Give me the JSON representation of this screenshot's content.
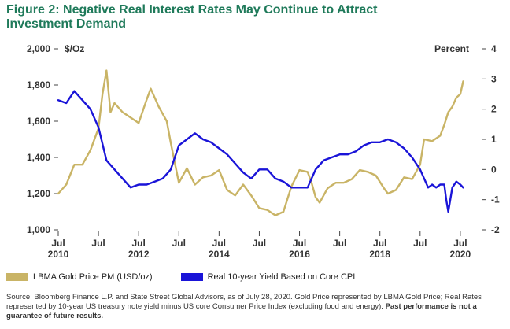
{
  "title_line1": "Figure 2: Negative Real Interest Rates May Continue to Attract",
  "title_line2": "Investment Demand",
  "chart_data": {
    "type": "line",
    "title": "Figure 2: Negative Real Interest Rates May Continue to Attract Investment Demand",
    "left_unit": "$/Oz",
    "right_unit": "Percent",
    "left_ticks": [
      "2,000",
      "1,800",
      "1,600",
      "1,400",
      "1,200",
      "1,000"
    ],
    "left_tick_values": [
      2000,
      1800,
      1600,
      1400,
      1200,
      1000
    ],
    "right_ticks": [
      "4",
      "3",
      "2",
      "1",
      "0",
      "-1",
      "-2"
    ],
    "right_tick_values": [
      4,
      3,
      2,
      1,
      0,
      -1,
      -2
    ],
    "left_ylim": [
      1000,
      2000
    ],
    "right_ylim": [
      -2,
      4
    ],
    "xlim": [
      2010.5,
      2020.6
    ],
    "x_ticks": [
      {
        "pos": 2010.5,
        "month": "Jul",
        "year": "2010"
      },
      {
        "pos": 2011.5,
        "month": "Jul",
        "year": ""
      },
      {
        "pos": 2012.5,
        "month": "Jul",
        "year": "2012"
      },
      {
        "pos": 2013.5,
        "month": "Jul",
        "year": ""
      },
      {
        "pos": 2014.5,
        "month": "Jul",
        "year": "2014"
      },
      {
        "pos": 2015.5,
        "month": "Jul",
        "year": ""
      },
      {
        "pos": 2016.5,
        "month": "Jul",
        "year": "2016"
      },
      {
        "pos": 2017.5,
        "month": "Jul",
        "year": ""
      },
      {
        "pos": 2018.5,
        "month": "Jul",
        "year": "2018"
      },
      {
        "pos": 2019.5,
        "month": "Jul",
        "year": ""
      },
      {
        "pos": 2020.5,
        "month": "Jul",
        "year": "2020"
      }
    ],
    "series": [
      {
        "name": "LBMA Gold Price PM (USD/oz)",
        "axis": "left",
        "color": "#c9b466",
        "x": [
          2010.5,
          2010.7,
          2010.9,
          2011.1,
          2011.3,
          2011.5,
          2011.6,
          2011.7,
          2011.8,
          2011.9,
          2012.1,
          2012.3,
          2012.5,
          2012.7,
          2012.8,
          2013.0,
          2013.2,
          2013.3,
          2013.5,
          2013.7,
          2013.9,
          2014.1,
          2014.3,
          2014.5,
          2014.7,
          2014.9,
          2015.1,
          2015.3,
          2015.5,
          2015.7,
          2015.9,
          2016.1,
          2016.3,
          2016.5,
          2016.7,
          2016.8,
          2016.9,
          2017.0,
          2017.2,
          2017.4,
          2017.6,
          2017.8,
          2018.0,
          2018.2,
          2018.4,
          2018.6,
          2018.7,
          2018.9,
          2019.1,
          2019.3,
          2019.5,
          2019.6,
          2019.8,
          2020.0,
          2020.1,
          2020.2,
          2020.3,
          2020.4,
          2020.5,
          2020.57
        ],
        "values": [
          1200,
          1250,
          1360,
          1360,
          1440,
          1560,
          1750,
          1880,
          1650,
          1700,
          1650,
          1620,
          1590,
          1720,
          1780,
          1680,
          1600,
          1480,
          1260,
          1340,
          1250,
          1290,
          1300,
          1330,
          1220,
          1190,
          1250,
          1190,
          1120,
          1110,
          1080,
          1100,
          1240,
          1330,
          1320,
          1260,
          1180,
          1150,
          1230,
          1260,
          1260,
          1280,
          1330,
          1320,
          1300,
          1230,
          1200,
          1220,
          1290,
          1280,
          1360,
          1500,
          1490,
          1520,
          1580,
          1650,
          1680,
          1730,
          1750,
          1820
        ]
      },
      {
        "name": "Real 10-year Yield Based on Core CPI",
        "axis": "right",
        "color": "#1a14d8",
        "x": [
          2010.5,
          2010.7,
          2010.9,
          2011.1,
          2011.3,
          2011.5,
          2011.7,
          2011.9,
          2012.1,
          2012.3,
          2012.5,
          2012.7,
          2012.9,
          2013.1,
          2013.3,
          2013.5,
          2013.7,
          2013.9,
          2014.1,
          2014.3,
          2014.5,
          2014.7,
          2014.9,
          2015.1,
          2015.3,
          2015.5,
          2015.7,
          2015.9,
          2016.1,
          2016.3,
          2016.5,
          2016.7,
          2016.9,
          2017.1,
          2017.3,
          2017.5,
          2017.7,
          2017.9,
          2018.1,
          2018.3,
          2018.5,
          2018.7,
          2018.9,
          2019.1,
          2019.3,
          2019.5,
          2019.7,
          2019.8,
          2019.9,
          2020.0,
          2020.1,
          2020.15,
          2020.2,
          2020.3,
          2020.4,
          2020.5,
          2020.57
        ],
        "values": [
          2.3,
          2.2,
          2.6,
          2.3,
          2.0,
          1.4,
          0.3,
          0.0,
          -0.3,
          -0.6,
          -0.5,
          -0.5,
          -0.4,
          -0.3,
          0.0,
          0.8,
          1.0,
          1.2,
          1.0,
          0.9,
          0.7,
          0.5,
          0.2,
          -0.1,
          -0.3,
          0.0,
          0.0,
          -0.3,
          -0.4,
          -0.6,
          -0.6,
          -0.6,
          0.0,
          0.3,
          0.4,
          0.5,
          0.5,
          0.6,
          0.8,
          0.9,
          0.9,
          1.0,
          0.9,
          0.7,
          0.4,
          0.0,
          -0.6,
          -0.5,
          -0.6,
          -0.5,
          -0.5,
          -1.0,
          -1.4,
          -0.6,
          -0.4,
          -0.5,
          -0.6
        ]
      }
    ]
  },
  "legend": [
    {
      "label": "LBMA Gold Price PM (USD/oz)",
      "color": "#c9b466"
    },
    {
      "label": "Real 10-year Yield Based on Core CPI",
      "color": "#1a14d8"
    }
  ],
  "source_text": "Source: Bloomberg Finance L.P. and State Street Global Advisors, as of July 28, 2020. Gold Price represented by LBMA Gold Price; Real Rates represented by 10-year US treasury note yield minus US core Consumer Price Index (excluding food and energy). ",
  "source_bold": "Past performance is not a guarantee of future results."
}
